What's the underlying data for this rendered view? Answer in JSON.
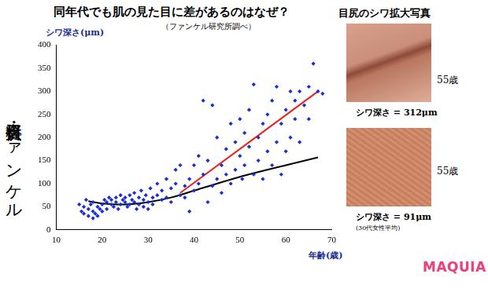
{
  "chart_data": {
    "type": "scatter",
    "title": "同年代でも肌の見た目に差があるのはなぜ？",
    "subtitle": "（ファンケル研究所調べ）",
    "x_label": "年齢(歳)",
    "y_label": "シワ深さ(μm)",
    "xlim": [
      10,
      70
    ],
    "xticks": [
      10,
      20,
      30,
      40,
      50,
      60,
      70
    ],
    "ylim": [
      0,
      400
    ],
    "yticks": [
      0,
      50,
      100,
      150,
      200,
      250,
      300,
      350,
      400
    ],
    "grid": false,
    "series": [
      {
        "type": "scatter",
        "color": "#1a2fd1",
        "marker": "diamond",
        "x": [
          15,
          15.5,
          16,
          16,
          16.5,
          17,
          17,
          17.5,
          18,
          18,
          18,
          18.5,
          19,
          19,
          19.5,
          20,
          20,
          20.5,
          21,
          21,
          21.5,
          22,
          22,
          22.5,
          23,
          23,
          23.5,
          24,
          24,
          24.5,
          25,
          25,
          25.5,
          26,
          26,
          26.5,
          27,
          27,
          27.5,
          28,
          28,
          28.5,
          29,
          29,
          29.5,
          30,
          30,
          30.5,
          31,
          31,
          32,
          32,
          33,
          33,
          34,
          34,
          35,
          35,
          36,
          36,
          37,
          37,
          38,
          38,
          39,
          39,
          40,
          40,
          41,
          41,
          42,
          42,
          43,
          43,
          44,
          44,
          45,
          45,
          46,
          46,
          47,
          47,
          48,
          48,
          49,
          49,
          50,
          50,
          50.5,
          51,
          51,
          52,
          52,
          53,
          53,
          54,
          54,
          55,
          55,
          56,
          56,
          57,
          57,
          58,
          58,
          59,
          59,
          60,
          60,
          61,
          61,
          62,
          62,
          63,
          63,
          64,
          65,
          65,
          66,
          67,
          68
        ],
        "values": [
          55,
          40,
          35,
          50,
          65,
          30,
          45,
          55,
          25,
          40,
          60,
          35,
          50,
          30,
          45,
          55,
          40,
          65,
          60,
          45,
          70,
          55,
          65,
          50,
          70,
          60,
          45,
          75,
          55,
          65,
          60,
          70,
          50,
          75,
          55,
          65,
          80,
          60,
          45,
          70,
          55,
          85,
          65,
          50,
          75,
          60,
          45,
          90,
          70,
          55,
          75,
          100,
          65,
          85,
          110,
          70,
          90,
          60,
          100,
          130,
          75,
          140,
          95,
          70,
          110,
          40,
          85,
          140,
          100,
          160,
          280,
          120,
          60,
          150,
          95,
          270,
          110,
          200,
          140,
          80,
          175,
          120,
          230,
          100,
          190,
          130,
          160,
          240,
          110,
          210,
          140,
          180,
          260,
          315,
          120,
          200,
          150,
          230,
          110,
          170,
          250,
          280,
          140,
          190,
          310,
          230,
          120,
          260,
          170,
          300,
          200,
          240,
          280,
          190,
          300,
          270,
          240,
          310,
          360,
          300,
          295
        ]
      },
      {
        "type": "line",
        "color": "#e8231f",
        "line_style": "solid",
        "x": [
          37,
          67
        ],
        "values": [
          80,
          300
        ]
      },
      {
        "type": "line",
        "color": "#000000",
        "line_style": "solid",
        "x": [
          17,
          20,
          25,
          30,
          35,
          40,
          50,
          60,
          67
        ],
        "values": [
          62,
          57,
          55,
          60,
          70,
          85,
          115,
          140,
          157
        ]
      }
    ]
  },
  "side_panel": {
    "title": "目尻のシワ拡大写真",
    "photos": [
      {
        "age": "55歳",
        "caption": "シワ深さ = 312μm"
      },
      {
        "age": "55歳",
        "caption": "シワ深さ = 91μm",
        "note": "(30代女性平均)"
      }
    ]
  },
  "credit": "資料提供・ファンケル",
  "logo": "MAQUIA"
}
